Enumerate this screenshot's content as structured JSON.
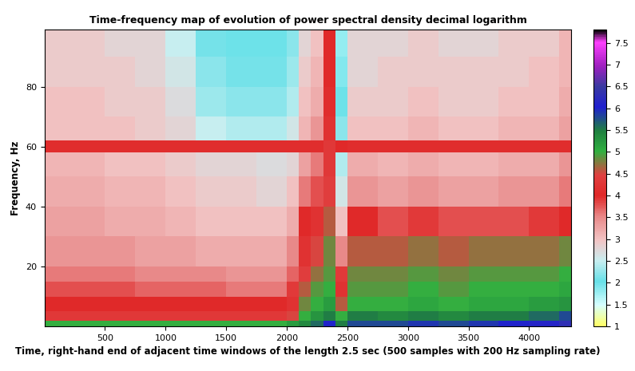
{
  "chart_data": {
    "type": "heatmap",
    "title": "Time-frequency map of evolution of power spectral density decimal logarithm",
    "x_label": "Time, right-hand end of adjacent time windows of the length 2.5 sec (500 samples with 200 Hz sampling rate)",
    "y_label": "Frequency, Hz",
    "x_edges": [
      0,
      250,
      500,
      750,
      1000,
      1250,
      1500,
      1750,
      2000,
      2100,
      2200,
      2300,
      2400,
      2500,
      2750,
      3000,
      3250,
      3500,
      3750,
      4000,
      4250,
      4350
    ],
    "y_edges": [
      0,
      2,
      5,
      10,
      15,
      20,
      30,
      40,
      50,
      58,
      62,
      70,
      80,
      90,
      100
    ],
    "cells": [
      [
        5.0,
        5.0,
        5.0,
        5.0,
        5.0,
        5.0,
        5.0,
        5.0,
        5.2,
        5.4,
        5.6,
        6.0,
        5.5,
        5.8,
        5.8,
        5.9,
        5.8,
        5.9,
        6.0,
        6.1,
        6.3
      ],
      [
        4.3,
        4.3,
        4.3,
        4.3,
        4.3,
        4.3,
        4.3,
        4.3,
        4.5,
        5.0,
        5.3,
        5.5,
        5.0,
        5.5,
        5.4,
        5.5,
        5.4,
        5.5,
        5.5,
        5.6,
        5.8
      ],
      [
        4.0,
        4.0,
        4.0,
        4.0,
        4.0,
        4.0,
        4.0,
        4.0,
        4.2,
        4.8,
        5.0,
        5.2,
        4.6,
        5.0,
        5.0,
        5.1,
        5.0,
        5.1,
        5.1,
        5.2,
        5.3
      ],
      [
        3.8,
        3.8,
        3.8,
        3.7,
        3.7,
        3.7,
        3.6,
        3.6,
        3.9,
        4.6,
        4.9,
        5.0,
        4.2,
        4.9,
        4.9,
        5.0,
        4.9,
        5.0,
        5.0,
        5.0,
        5.1
      ],
      [
        3.6,
        3.6,
        3.6,
        3.5,
        3.5,
        3.5,
        3.4,
        3.4,
        3.7,
        4.4,
        4.7,
        4.9,
        3.9,
        4.8,
        4.8,
        4.9,
        4.8,
        4.9,
        4.9,
        4.9,
        5.0
      ],
      [
        3.4,
        3.4,
        3.4,
        3.3,
        3.3,
        3.2,
        3.2,
        3.2,
        3.5,
        4.2,
        4.5,
        4.8,
        3.5,
        4.6,
        4.6,
        4.7,
        4.6,
        4.7,
        4.7,
        4.7,
        4.8
      ],
      [
        3.3,
        3.3,
        3.2,
        3.2,
        3.1,
        3.0,
        3.0,
        3.0,
        3.2,
        4.0,
        4.2,
        4.6,
        3.0,
        4.0,
        3.8,
        3.9,
        3.8,
        3.8,
        3.8,
        3.9,
        4.0
      ],
      [
        3.2,
        3.2,
        3.1,
        3.1,
        3.0,
        2.9,
        2.9,
        2.8,
        3.0,
        3.6,
        3.8,
        4.4,
        2.6,
        3.4,
        3.3,
        3.4,
        3.3,
        3.3,
        3.4,
        3.4,
        3.6
      ],
      [
        3.1,
        3.1,
        3.0,
        3.0,
        2.9,
        2.8,
        2.8,
        2.7,
        2.8,
        3.3,
        3.6,
        4.3,
        2.4,
        3.2,
        3.1,
        3.2,
        3.1,
        3.1,
        3.2,
        3.2,
        3.4
      ],
      [
        4.1,
        4.1,
        4.1,
        4.1,
        4.1,
        4.1,
        4.1,
        4.1,
        4.1,
        4.1,
        4.1,
        4.3,
        4.0,
        4.1,
        4.1,
        4.1,
        4.1,
        4.1,
        4.1,
        4.1,
        4.1
      ],
      [
        3.0,
        3.0,
        3.0,
        2.9,
        2.8,
        2.5,
        2.4,
        2.4,
        2.6,
        3.1,
        3.4,
        4.2,
        2.2,
        3.0,
        3.0,
        3.1,
        3.0,
        3.0,
        3.1,
        3.1,
        3.3
      ],
      [
        3.0,
        3.0,
        2.9,
        2.9,
        2.7,
        2.3,
        2.2,
        2.2,
        2.4,
        3.0,
        3.2,
        4.1,
        2.0,
        2.9,
        2.9,
        3.0,
        2.9,
        2.9,
        3.0,
        3.0,
        3.2
      ],
      [
        2.9,
        2.9,
        2.9,
        2.8,
        2.6,
        2.2,
        2.1,
        2.1,
        2.3,
        2.9,
        3.1,
        4.0,
        1.9,
        2.8,
        2.9,
        2.9,
        2.9,
        2.9,
        2.9,
        3.0,
        3.1
      ],
      [
        2.9,
        2.9,
        2.8,
        2.8,
        2.5,
        2.1,
        2.0,
        2.0,
        2.2,
        2.8,
        3.0,
        4.0,
        1.8,
        2.8,
        2.8,
        2.9,
        2.8,
        2.8,
        2.9,
        2.9,
        3.1
      ]
    ],
    "xlim": [
      0,
      4350
    ],
    "ylim": [
      0,
      99
    ],
    "xticks": [
      500,
      1000,
      1500,
      2000,
      2500,
      3000,
      3500,
      4000
    ],
    "yticks": [
      20,
      40,
      60,
      80
    ],
    "colorbar_range": [
      1,
      7.8
    ],
    "colorbar_ticks": [
      1,
      1.5,
      2,
      2.5,
      3,
      3.5,
      4,
      4.5,
      5,
      5.5,
      6,
      6.5,
      7,
      7.5
    ]
  }
}
